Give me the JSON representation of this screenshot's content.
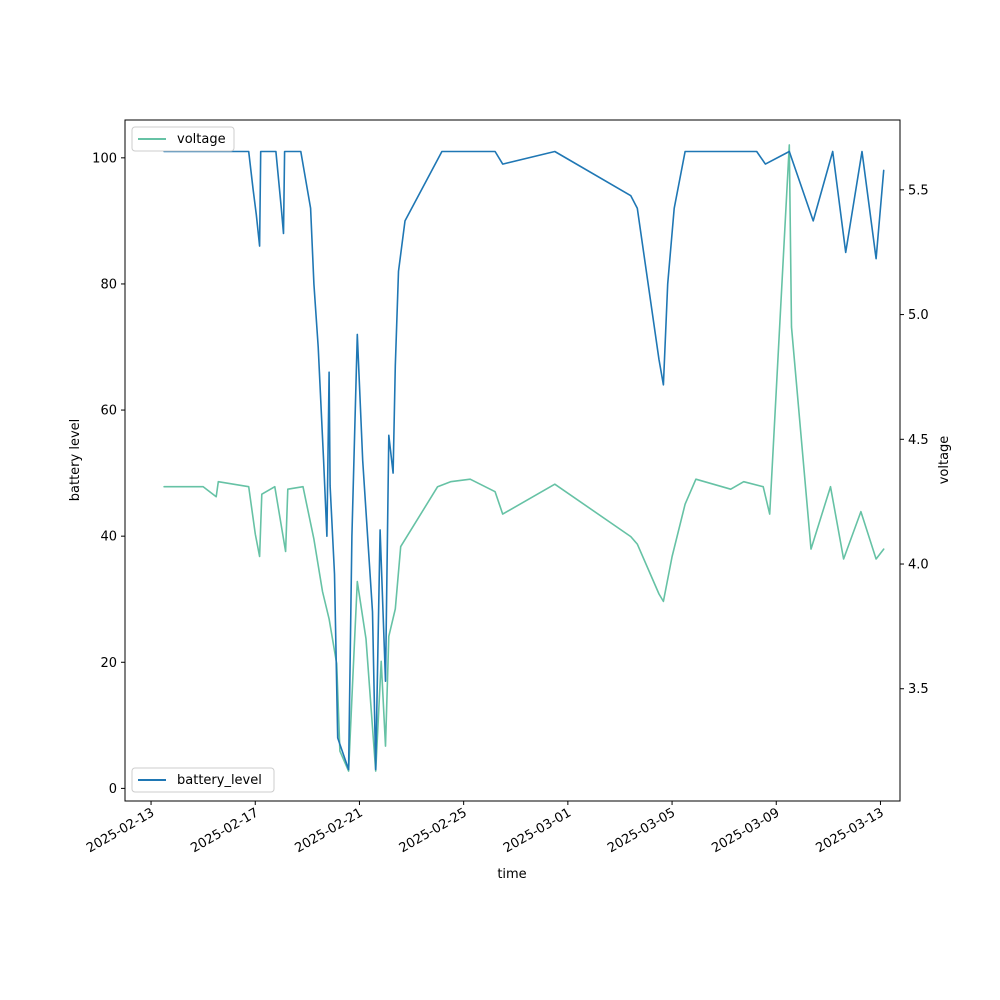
{
  "chart_data": {
    "type": "line",
    "xlabel": "time",
    "ylabel_left": "battery level",
    "ylabel_right": "voltage",
    "x_ticks": [
      "2025-02-13",
      "2025-02-17",
      "2025-02-21",
      "2025-02-25",
      "2025-03-01",
      "2025-03-05",
      "2025-03-09",
      "2025-03-13"
    ],
    "xlim": [
      "2025-02-12T00:00",
      "2025-03-13T18:00"
    ],
    "ylim_left": [
      -2,
      106
    ],
    "ylim_right": [
      3.05,
      5.78
    ],
    "yticks_left": [
      0,
      20,
      40,
      60,
      80,
      100
    ],
    "yticks_right": [
      3.5,
      4.0,
      4.5,
      5.0,
      5.5
    ],
    "legend_upper_left": "voltage",
    "legend_lower_left": "battery_level",
    "colors": {
      "battery_level": "#1f77b4",
      "voltage": "#66c2a5"
    },
    "series": [
      {
        "name": "battery_level",
        "axis": "left",
        "points": [
          [
            "2025-02-13T12:00",
            101
          ],
          [
            "2025-02-16T18:00",
            101
          ],
          [
            "2025-02-16T22:00",
            95
          ],
          [
            "2025-02-17T01:00",
            91
          ],
          [
            "2025-02-17T04:00",
            86
          ],
          [
            "2025-02-17T05:00",
            101
          ],
          [
            "2025-02-17T19:00",
            101
          ],
          [
            "2025-02-18T00:00",
            92
          ],
          [
            "2025-02-18T02:00",
            88
          ],
          [
            "2025-02-18T03:00",
            101
          ],
          [
            "2025-02-18T18:00",
            101
          ],
          [
            "2025-02-19T03:00",
            92
          ],
          [
            "2025-02-19T06:00",
            80
          ],
          [
            "2025-02-19T10:00",
            70
          ],
          [
            "2025-02-19T15:00",
            52
          ],
          [
            "2025-02-19T18:00",
            40
          ],
          [
            "2025-02-19T20:00",
            66
          ],
          [
            "2025-02-19T21:00",
            48
          ],
          [
            "2025-02-20T01:00",
            34
          ],
          [
            "2025-02-20T04:00",
            8
          ],
          [
            "2025-02-20T14:00",
            3
          ],
          [
            "2025-02-20T17:00",
            40
          ],
          [
            "2025-02-20T22:00",
            72
          ],
          [
            "2025-02-21T03:00",
            52
          ],
          [
            "2025-02-21T12:00",
            28
          ],
          [
            "2025-02-21T15:00",
            3
          ],
          [
            "2025-02-21T19:00",
            41
          ],
          [
            "2025-02-22T00:00",
            17
          ],
          [
            "2025-02-22T03:00",
            56
          ],
          [
            "2025-02-22T07:00",
            50
          ],
          [
            "2025-02-22T09:00",
            67
          ],
          [
            "2025-02-22T12:00",
            82
          ],
          [
            "2025-02-22T18:00",
            90
          ],
          [
            "2025-02-24T04:00",
            101
          ],
          [
            "2025-02-26T05:00",
            101
          ],
          [
            "2025-02-26T12:00",
            99
          ],
          [
            "2025-02-28T12:00",
            101
          ],
          [
            "2025-03-03T10:00",
            94
          ],
          [
            "2025-03-03T16:00",
            92
          ],
          [
            "2025-03-04T12:00",
            68
          ],
          [
            "2025-03-04T16:00",
            64
          ],
          [
            "2025-03-04T20:00",
            80
          ],
          [
            "2025-03-05T02:00",
            92
          ],
          [
            "2025-03-05T12:00",
            101
          ],
          [
            "2025-03-08T06:00",
            101
          ],
          [
            "2025-03-08T14:00",
            99
          ],
          [
            "2025-03-09T12:00",
            101
          ],
          [
            "2025-03-10T10:00",
            90
          ],
          [
            "2025-03-11T04:00",
            101
          ],
          [
            "2025-03-11T16:00",
            85
          ],
          [
            "2025-03-12T07:00",
            101
          ],
          [
            "2025-03-12T20:00",
            84
          ],
          [
            "2025-03-13T03:00",
            98
          ]
        ]
      },
      {
        "name": "voltage",
        "axis": "right",
        "points": [
          [
            "2025-02-13T12:00",
            4.31
          ],
          [
            "2025-02-15T00:00",
            4.31
          ],
          [
            "2025-02-15T12:00",
            4.27
          ],
          [
            "2025-02-15T14:00",
            4.33
          ],
          [
            "2025-02-16T18:00",
            4.31
          ],
          [
            "2025-02-17T00:00",
            4.12
          ],
          [
            "2025-02-17T04:00",
            4.03
          ],
          [
            "2025-02-17T06:00",
            4.28
          ],
          [
            "2025-02-17T18:00",
            4.31
          ],
          [
            "2025-02-18T04:00",
            4.05
          ],
          [
            "2025-02-18T06:00",
            4.3
          ],
          [
            "2025-02-18T20:00",
            4.31
          ],
          [
            "2025-02-19T06:00",
            4.1
          ],
          [
            "2025-02-19T14:00",
            3.89
          ],
          [
            "2025-02-19T20:00",
            3.78
          ],
          [
            "2025-02-20T03:00",
            3.6
          ],
          [
            "2025-02-20T06:00",
            3.25
          ],
          [
            "2025-02-20T14:00",
            3.17
          ],
          [
            "2025-02-20T18:00",
            3.55
          ],
          [
            "2025-02-20T22:00",
            3.93
          ],
          [
            "2025-02-21T06:00",
            3.7
          ],
          [
            "2025-02-21T15:00",
            3.17
          ],
          [
            "2025-02-21T20:00",
            3.61
          ],
          [
            "2025-02-22T00:00",
            3.27
          ],
          [
            "2025-02-22T03:00",
            3.71
          ],
          [
            "2025-02-22T09:00",
            3.82
          ],
          [
            "2025-02-22T14:00",
            4.07
          ],
          [
            "2025-02-24T00:00",
            4.31
          ],
          [
            "2025-02-24T12:00",
            4.33
          ],
          [
            "2025-02-25T06:00",
            4.34
          ],
          [
            "2025-02-26T05:00",
            4.29
          ],
          [
            "2025-02-26T12:00",
            4.2
          ],
          [
            "2025-02-28T12:00",
            4.32
          ],
          [
            "2025-03-03T10:00",
            4.11
          ],
          [
            "2025-03-03T16:00",
            4.08
          ],
          [
            "2025-03-04T12:00",
            3.88
          ],
          [
            "2025-03-04T16:00",
            3.85
          ],
          [
            "2025-03-05T00:00",
            4.03
          ],
          [
            "2025-03-05T12:00",
            4.24
          ],
          [
            "2025-03-05T22:00",
            4.34
          ],
          [
            "2025-03-07T06:00",
            4.3
          ],
          [
            "2025-03-07T18:00",
            4.33
          ],
          [
            "2025-03-08T12:00",
            4.31
          ],
          [
            "2025-03-08T18:00",
            4.2
          ],
          [
            "2025-03-09T12:00",
            5.68
          ],
          [
            "2025-03-09T14:00",
            4.95
          ],
          [
            "2025-03-10T08:00",
            4.06
          ],
          [
            "2025-03-11T02:00",
            4.31
          ],
          [
            "2025-03-11T14:00",
            4.02
          ],
          [
            "2025-03-12T06:00",
            4.21
          ],
          [
            "2025-03-12T20:00",
            4.02
          ],
          [
            "2025-03-13T03:00",
            4.06
          ]
        ]
      }
    ]
  }
}
